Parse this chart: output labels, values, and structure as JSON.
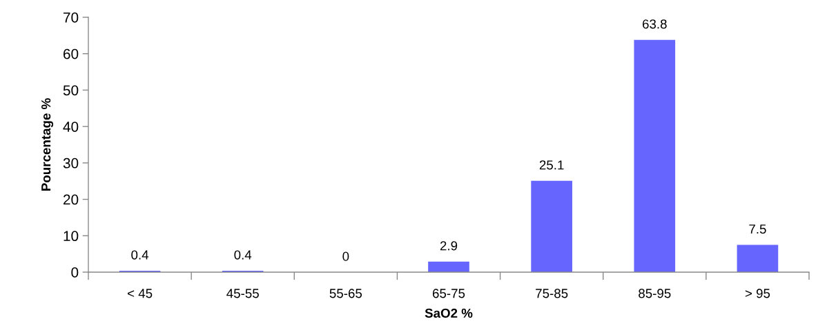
{
  "chart_data": {
    "type": "bar",
    "xlabel": "SaO2 %",
    "ylabel": "Pourcentage %",
    "categories": [
      "< 45",
      "45-55",
      "55-65",
      "65-75",
      "75-85",
      "85-95",
      "> 95"
    ],
    "series": [
      {
        "color": "#6666ff",
        "values": [
          0.4,
          0.4,
          0,
          2.9,
          25.1,
          63.8,
          7.5
        ]
      }
    ],
    "data_labels": true,
    "ylim": [
      0,
      70
    ],
    "yticks": [
      0,
      10,
      20,
      30,
      40,
      50,
      60,
      70
    ],
    "grid": false
  }
}
